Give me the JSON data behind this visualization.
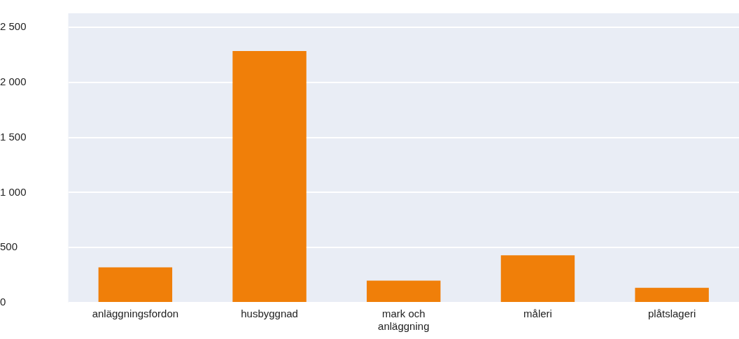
{
  "chart_data": {
    "type": "bar",
    "categories": [
      "anläggningsfordon",
      "husbyggnad",
      "mark och anläggning",
      "måleri",
      "plåtslageri"
    ],
    "values": [
      320,
      2285,
      200,
      430,
      135
    ],
    "color": "#f07f09",
    "ylim": [
      0,
      2500
    ],
    "yticks": [
      {
        "value": 0,
        "label": "0"
      },
      {
        "value": 500,
        "label": "500"
      },
      {
        "value": 1000,
        "label": "1 000"
      },
      {
        "value": 1500,
        "label": "1 500"
      },
      {
        "value": 2000,
        "label": "2 000"
      },
      {
        "value": 2500,
        "label": "2 500"
      }
    ],
    "grid": "y",
    "legend": false
  }
}
